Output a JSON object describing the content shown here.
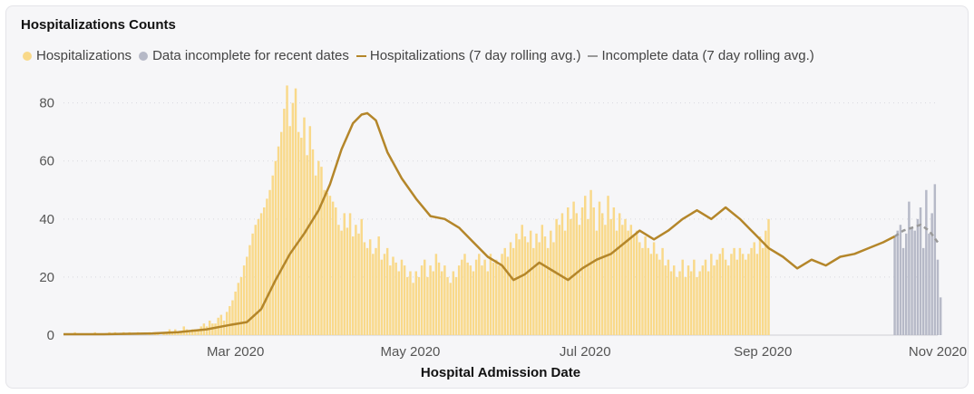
{
  "title": "Hospitalizations Counts",
  "legend": {
    "items": [
      {
        "label": "Hospitalizations",
        "kind": "dot",
        "color": "#f9d98a"
      },
      {
        "label": "Data incomplete for recent dates",
        "kind": "dot",
        "color": "#b6b9c7"
      },
      {
        "label": "Hospitalizations (7 day rolling avg.)",
        "kind": "line",
        "color": "#b4862a"
      },
      {
        "label": "Incomplete data (7 day rolling avg.)",
        "kind": "line",
        "color": "#999999"
      }
    ]
  },
  "colors": {
    "complete_bar": "#f9d98a",
    "incomplete_bar": "#b6b9c7",
    "avg_line": "#b4862a",
    "incomplete_line": "#999999",
    "gridline": "#d9d9de"
  },
  "chart_data": {
    "type": "bar",
    "title": "Hospitalizations Counts",
    "xlabel": "Hospital Admission Date",
    "ylabel": "",
    "ylim": [
      0,
      88
    ],
    "xlim": [
      "2020-01-01",
      "2020-11-01"
    ],
    "grid": true,
    "legend_position": "top-left",
    "yticks": [
      0,
      20,
      40,
      60,
      80
    ],
    "xticks": [
      "2020-03-01",
      "2020-05-01",
      "2020-07-01",
      "2020-09-01",
      "2020-11-01"
    ],
    "xtick_labels": [
      "Mar 2020",
      "May 2020",
      "Jul 2020",
      "Sep 2020",
      "Nov 2020"
    ],
    "x_start": "2020-01-01",
    "incomplete_start": "2020-10-17",
    "series": [
      {
        "name": "Hospitalizations",
        "kind": "bar",
        "values": [
          0,
          0,
          0,
          0,
          1,
          0,
          0,
          0,
          0,
          0,
          0,
          1,
          0,
          0,
          0,
          0,
          1,
          0,
          1,
          0,
          0,
          1,
          0,
          1,
          0,
          0,
          1,
          0,
          0,
          0,
          1,
          0,
          1,
          1,
          0,
          1,
          1,
          2,
          1,
          2,
          1,
          1,
          3,
          2,
          1,
          2,
          2,
          2,
          3,
          4,
          3,
          5,
          4,
          4,
          6,
          7,
          5,
          8,
          10,
          12,
          15,
          18,
          20,
          24,
          27,
          31,
          35,
          38,
          40,
          42,
          44,
          47,
          50,
          55,
          60,
          65,
          70,
          78,
          86,
          72,
          80,
          85,
          70,
          68,
          75,
          62,
          72,
          64,
          55,
          60,
          58,
          50,
          49,
          48,
          46,
          44,
          38,
          36,
          42,
          37,
          42,
          34,
          38,
          35,
          40,
          32,
          30,
          33,
          28,
          30,
          34,
          26,
          28,
          30,
          24,
          27,
          25,
          22,
          26,
          24,
          20,
          22,
          18,
          22,
          20,
          24,
          26,
          20,
          24,
          22,
          28,
          25,
          22,
          24,
          20,
          18,
          22,
          20,
          24,
          26,
          28,
          25,
          24,
          22,
          26,
          28,
          24,
          26,
          22,
          28,
          25,
          26,
          24,
          28,
          30,
          27,
          32,
          30,
          35,
          33,
          38,
          34,
          32,
          36,
          30,
          35,
          32,
          38,
          34,
          30,
          36,
          32,
          40,
          38,
          42,
          36,
          44,
          40,
          46,
          42,
          38,
          44,
          48,
          40,
          50,
          44,
          36,
          46,
          42,
          38,
          48,
          40,
          44,
          36,
          42,
          38,
          40,
          36,
          38,
          34,
          36,
          32,
          30,
          34,
          30,
          28,
          32,
          28,
          26,
          30,
          24,
          26,
          22,
          24,
          20,
          22,
          26,
          20,
          24,
          22,
          26,
          20,
          22,
          24,
          26,
          22,
          28,
          24,
          26,
          28,
          30,
          26,
          24,
          28,
          30,
          26,
          30,
          28,
          26,
          28,
          30,
          32,
          28,
          34,
          30,
          36,
          40
        ],
        "values_note": ""
      },
      {
        "name": "Data incomplete for recent dates",
        "kind": "bar",
        "values": [
          34,
          36,
          38,
          30,
          35,
          46,
          37,
          36,
          40,
          44,
          30,
          50,
          35,
          42,
          52,
          26,
          13
        ]
      },
      {
        "name": "Hospitalizations (7 day rolling avg.)",
        "kind": "line",
        "points": [
          [
            "2020-01-01",
            0.3
          ],
          [
            "2020-01-15",
            0.3
          ],
          [
            "2020-02-01",
            0.6
          ],
          [
            "2020-02-10",
            1.0
          ],
          [
            "2020-02-20",
            2.0
          ],
          [
            "2020-02-28",
            3.5
          ],
          [
            "2020-03-05",
            4.5
          ],
          [
            "2020-03-10",
            9
          ],
          [
            "2020-03-15",
            19
          ],
          [
            "2020-03-20",
            28
          ],
          [
            "2020-03-25",
            35
          ],
          [
            "2020-03-30",
            43
          ],
          [
            "2020-04-03",
            52
          ],
          [
            "2020-04-07",
            64
          ],
          [
            "2020-04-11",
            73
          ],
          [
            "2020-04-14",
            76
          ],
          [
            "2020-04-16",
            76.5
          ],
          [
            "2020-04-19",
            74
          ],
          [
            "2020-04-23",
            63
          ],
          [
            "2020-04-28",
            54
          ],
          [
            "2020-05-03",
            47
          ],
          [
            "2020-05-08",
            41
          ],
          [
            "2020-05-13",
            40
          ],
          [
            "2020-05-18",
            37
          ],
          [
            "2020-05-23",
            32
          ],
          [
            "2020-05-28",
            27
          ],
          [
            "2020-06-02",
            24
          ],
          [
            "2020-06-06",
            19
          ],
          [
            "2020-06-10",
            21
          ],
          [
            "2020-06-15",
            25
          ],
          [
            "2020-06-20",
            22
          ],
          [
            "2020-06-25",
            19
          ],
          [
            "2020-06-30",
            23
          ],
          [
            "2020-07-05",
            26
          ],
          [
            "2020-07-10",
            28
          ],
          [
            "2020-07-15",
            32
          ],
          [
            "2020-07-20",
            36
          ],
          [
            "2020-07-25",
            33
          ],
          [
            "2020-07-30",
            36
          ],
          [
            "2020-08-04",
            40
          ],
          [
            "2020-08-09",
            43
          ],
          [
            "2020-08-14",
            40
          ],
          [
            "2020-08-19",
            44
          ],
          [
            "2020-08-24",
            40
          ],
          [
            "2020-08-29",
            35
          ],
          [
            "2020-09-03",
            30
          ],
          [
            "2020-09-08",
            27
          ],
          [
            "2020-09-13",
            23
          ],
          [
            "2020-09-18",
            26
          ],
          [
            "2020-09-23",
            24
          ],
          [
            "2020-09-28",
            27
          ],
          [
            "2020-10-03",
            28
          ],
          [
            "2020-10-08",
            30
          ],
          [
            "2020-10-13",
            32
          ],
          [
            "2020-10-17",
            34
          ]
        ]
      },
      {
        "name": "Incomplete data (7 day rolling avg.)",
        "kind": "line",
        "points": [
          [
            "2020-10-17",
            34
          ],
          [
            "2020-10-20",
            36
          ],
          [
            "2020-10-23",
            37
          ],
          [
            "2020-10-26",
            38
          ],
          [
            "2020-10-29",
            36
          ],
          [
            "2020-11-01",
            32
          ]
        ]
      }
    ]
  }
}
